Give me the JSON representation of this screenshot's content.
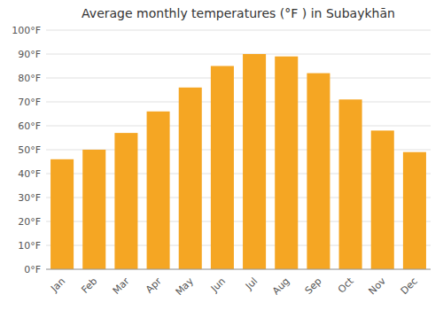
{
  "chart_data": {
    "type": "bar",
    "title": "Average monthly temperatures (°F ) in Subaykhān",
    "categories": [
      "Jan",
      "Feb",
      "Mar",
      "Apr",
      "May",
      "Jun",
      "Jul",
      "Aug",
      "Sep",
      "Oct",
      "Nov",
      "Dec"
    ],
    "values": [
      46,
      50,
      57,
      66,
      76,
      85,
      90,
      89,
      82,
      71,
      58,
      49
    ],
    "color": "#F5A623",
    "ylim": [
      0,
      100
    ],
    "yticks": [
      {
        "value": 0,
        "label": "0°F"
      },
      {
        "value": 10,
        "label": "10°F"
      },
      {
        "value": 20,
        "label": "20°F"
      },
      {
        "value": 30,
        "label": "30°F"
      },
      {
        "value": 40,
        "label": "40°F"
      },
      {
        "value": 50,
        "label": "50°F"
      },
      {
        "value": 60,
        "label": "60°F"
      },
      {
        "value": 70,
        "label": "70°F"
      },
      {
        "value": 80,
        "label": "80°F"
      },
      {
        "value": 90,
        "label": "90°F"
      },
      {
        "value": 100,
        "label": "100°F"
      }
    ],
    "grid": true
  }
}
